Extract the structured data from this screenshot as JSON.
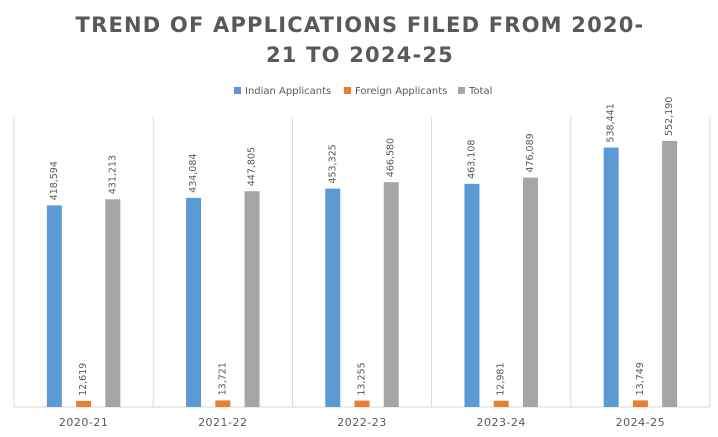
{
  "chart_data": {
    "type": "bar",
    "title": "TREND OF APPLICATIONS FILED FROM 2020-21 TO 2024-25",
    "categories": [
      "2020-21",
      "2021-22",
      "2022-23",
      "2023-24",
      "2024-25"
    ],
    "series": [
      {
        "name": "Indian Applicants",
        "color": "#5b9bd5",
        "values": [
          418594,
          434084,
          453325,
          463108,
          538441
        ],
        "value_labels": [
          "418,594",
          "434,084",
          "453,325",
          "463,108",
          "538,441"
        ]
      },
      {
        "name": "Foreign Applicants",
        "color": "#ed7d31",
        "values": [
          12619,
          13721,
          13255,
          12981,
          13749
        ],
        "value_labels": [
          "12,619",
          "13,721",
          "13,255",
          "12,981",
          "13,749"
        ]
      },
      {
        "name": "Total",
        "color": "#a5a5a5",
        "values": [
          431213,
          447805,
          466580,
          476089,
          552190
        ],
        "value_labels": [
          "431,213",
          "447,805",
          "466,580",
          "476,089",
          "552,190"
        ]
      }
    ]
  }
}
